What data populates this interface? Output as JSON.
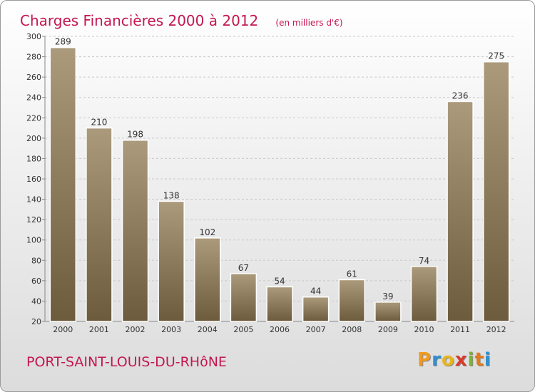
{
  "title": "Charges Financières 2000 à 2012",
  "unit_note": "(en milliers d'€)",
  "commune": "PORT-SAINT-LOUIS-DU-RHôNE",
  "brand": {
    "letters": [
      "P",
      "r",
      "o",
      "x",
      "i",
      "t",
      "i"
    ],
    "colors": [
      "#f39a1c",
      "#2f8fd0",
      "#e8b51e",
      "#d83a2b",
      "#79b52b",
      "#e07b1f",
      "#2f8fd0"
    ]
  },
  "colors": {
    "title": "#c4174f",
    "bar_light": "#ab9a7c",
    "bar_dark": "#6c5b3d",
    "bar_border": "#ffffff"
  },
  "chart_data": {
    "type": "bar",
    "title": "Charges Financières 2000 à 2012",
    "subtitle": "(en milliers d'€)",
    "xlabel": "",
    "ylabel": "",
    "categories": [
      "2000",
      "2001",
      "2002",
      "2003",
      "2004",
      "2005",
      "2006",
      "2007",
      "2008",
      "2009",
      "2010",
      "2011",
      "2012"
    ],
    "values": [
      289,
      210,
      198,
      138,
      102,
      67,
      54,
      44,
      61,
      39,
      74,
      236,
      275
    ],
    "ylim": [
      20,
      300
    ],
    "yticks": [
      20,
      40,
      60,
      80,
      100,
      120,
      140,
      160,
      180,
      200,
      220,
      240,
      260,
      280,
      300
    ],
    "grid": "horizontal dashed",
    "legend": "none"
  }
}
